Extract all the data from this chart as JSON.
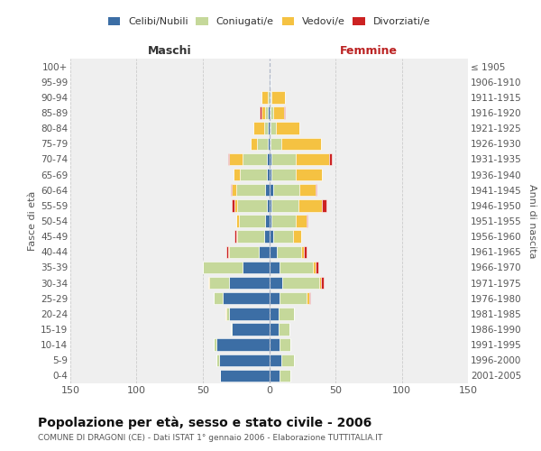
{
  "age_groups": [
    "0-4",
    "5-9",
    "10-14",
    "15-19",
    "20-24",
    "25-29",
    "30-34",
    "35-39",
    "40-44",
    "45-49",
    "50-54",
    "55-59",
    "60-64",
    "65-69",
    "70-74",
    "75-79",
    "80-84",
    "85-89",
    "90-94",
    "95-99",
    "100+"
  ],
  "birth_years": [
    "2001-2005",
    "1996-2000",
    "1991-1995",
    "1986-1990",
    "1981-1985",
    "1976-1980",
    "1971-1975",
    "1966-1970",
    "1961-1965",
    "1956-1960",
    "1951-1955",
    "1946-1950",
    "1941-1945",
    "1936-1940",
    "1931-1935",
    "1926-1930",
    "1921-1925",
    "1916-1920",
    "1911-1915",
    "1906-1910",
    "≤ 1905"
  ],
  "maschi": {
    "celibi": [
      37,
      38,
      40,
      28,
      30,
      35,
      30,
      20,
      8,
      4,
      3,
      2,
      3,
      2,
      2,
      1,
      1,
      1,
      0,
      0,
      0
    ],
    "coniugati": [
      0,
      2,
      2,
      1,
      2,
      7,
      15,
      30,
      22,
      20,
      20,
      22,
      22,
      20,
      18,
      8,
      3,
      2,
      1,
      0,
      0
    ],
    "vedovi": [
      0,
      0,
      0,
      0,
      1,
      0,
      1,
      0,
      1,
      1,
      2,
      2,
      3,
      5,
      10,
      5,
      8,
      3,
      5,
      0,
      0
    ],
    "divorziati": [
      0,
      0,
      0,
      0,
      0,
      0,
      0,
      0,
      1,
      1,
      0,
      2,
      1,
      0,
      1,
      0,
      0,
      1,
      0,
      0,
      0
    ]
  },
  "femmine": {
    "nubili": [
      8,
      9,
      8,
      7,
      7,
      8,
      10,
      8,
      6,
      3,
      2,
      2,
      3,
      2,
      2,
      1,
      1,
      1,
      1,
      1,
      0
    ],
    "coniugate": [
      8,
      10,
      8,
      8,
      12,
      20,
      28,
      25,
      18,
      15,
      18,
      20,
      20,
      18,
      18,
      8,
      4,
      2,
      1,
      0,
      0
    ],
    "vedove": [
      0,
      0,
      0,
      0,
      0,
      2,
      1,
      2,
      2,
      6,
      8,
      18,
      12,
      20,
      25,
      30,
      18,
      8,
      10,
      0,
      0
    ],
    "divorziate": [
      0,
      0,
      0,
      0,
      0,
      1,
      2,
      2,
      2,
      0,
      1,
      3,
      1,
      0,
      2,
      0,
      0,
      1,
      0,
      0,
      0
    ]
  },
  "colors": {
    "celibi": "#3c6ea5",
    "coniugati": "#c5d89a",
    "vedovi": "#f5c242",
    "divorziati": "#cc2222"
  },
  "xlim": 150,
  "title": "Popolazione per età, sesso e stato civile - 2006",
  "subtitle": "COMUNE DI DRAGONI (CE) - Dati ISTAT 1° gennaio 2006 - Elaborazione TUTTITALIA.IT",
  "ylabel_left": "Fasce di età",
  "ylabel_right": "Anni di nascita",
  "xlabel_maschi": "Maschi",
  "xlabel_femmine": "Femmine",
  "bg_color": "#efefef"
}
